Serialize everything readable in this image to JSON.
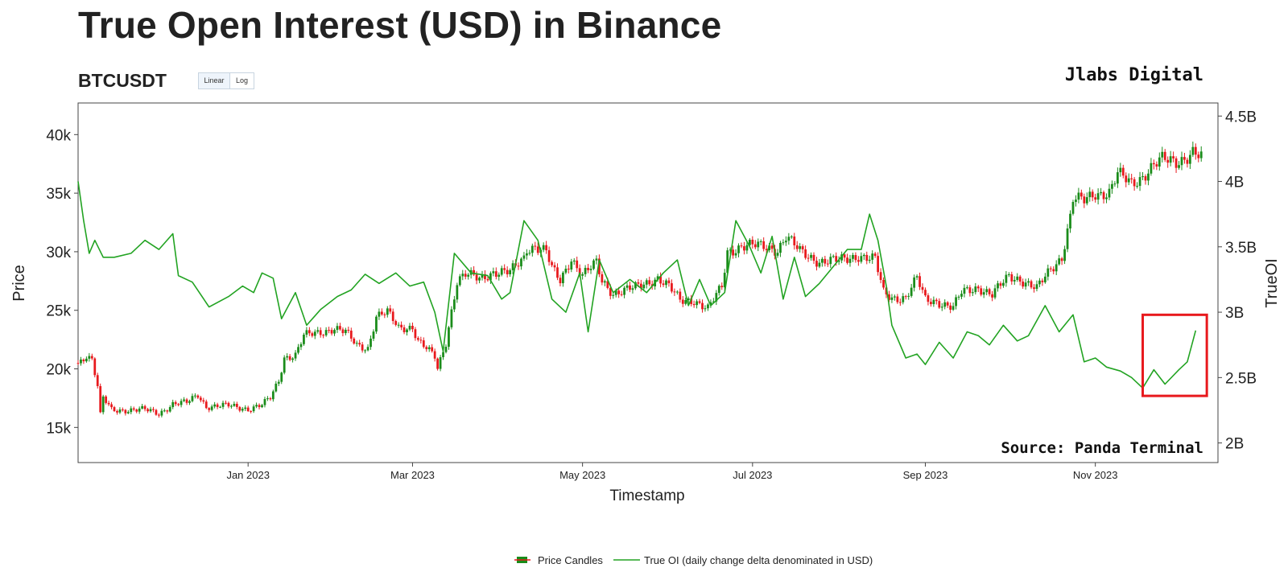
{
  "title": "True Open Interest (USD) in Binance",
  "symbol": "BTCUSDT",
  "scale_buttons": [
    {
      "label": "Linear",
      "active": true
    },
    {
      "label": "Log",
      "active": false
    }
  ],
  "watermark": "Jlabs Digital",
  "source": "Source: Panda Terminal",
  "colors": {
    "up": "#1a8c1a",
    "down": "#e8191d",
    "oi_line": "#22a322",
    "highlight_box": "#e8191d",
    "axis": "#444444"
  },
  "chart_data": {
    "type": "line",
    "xlabel": "Timestamp",
    "ylabel": "Price",
    "y2label": "TrueOI",
    "x_range": [
      "2022-11-01",
      "2023-12-15"
    ],
    "ylim": [
      12000,
      42700
    ],
    "y2lim": [
      1850000000,
      4600000000
    ],
    "x_ticks": [
      {
        "date": "2023-01-01",
        "label": "Jan 2023"
      },
      {
        "date": "2023-03-01",
        "label": "Mar 2023"
      },
      {
        "date": "2023-05-01",
        "label": "May 2023"
      },
      {
        "date": "2023-07-01",
        "label": "Jul 2023"
      },
      {
        "date": "2023-09-01",
        "label": "Sep 2023"
      },
      {
        "date": "2023-11-01",
        "label": "Nov 2023"
      }
    ],
    "y_ticks": [
      {
        "value": 15000,
        "label": "15k"
      },
      {
        "value": 20000,
        "label": "20k"
      },
      {
        "value": 25000,
        "label": "25k"
      },
      {
        "value": 30000,
        "label": "30k"
      },
      {
        "value": 35000,
        "label": "35k"
      },
      {
        "value": 40000,
        "label": "40k"
      }
    ],
    "y2_ticks": [
      {
        "value": 2000000000,
        "label": "2B"
      },
      {
        "value": 2500000000,
        "label": "2.5B"
      },
      {
        "value": 3000000000,
        "label": "3B"
      },
      {
        "value": 3500000000,
        "label": "3.5B"
      },
      {
        "value": 4000000000,
        "label": "4B"
      },
      {
        "value": 4500000000,
        "label": "4.5B"
      }
    ],
    "grid": false,
    "legend": {
      "placement": "bottom-center",
      "entries": [
        "Price Candles",
        "True OI (daily change delta denominated in USD)"
      ]
    },
    "annotation_box": {
      "x": [
        "2023-11-18",
        "2023-12-11"
      ],
      "y2": [
        2360000000,
        2980000000
      ]
    },
    "series": [
      {
        "name": "Price Candles",
        "type": "candlestick",
        "close": [
          [
            "2022-11-01",
            20500
          ],
          [
            "2022-11-04",
            21200
          ],
          [
            "2022-11-06",
            20800
          ],
          [
            "2022-11-08",
            18500
          ],
          [
            "2022-11-09",
            16000
          ],
          [
            "2022-11-10",
            17500
          ],
          [
            "2022-11-13",
            16500
          ],
          [
            "2022-11-20",
            16500
          ],
          [
            "2022-11-25",
            16500
          ],
          [
            "2022-11-30",
            16200
          ],
          [
            "2022-12-05",
            17000
          ],
          [
            "2022-12-10",
            17100
          ],
          [
            "2022-12-14",
            17800
          ],
          [
            "2022-12-17",
            16800
          ],
          [
            "2022-12-20",
            16800
          ],
          [
            "2022-12-25",
            16850
          ],
          [
            "2023-01-01",
            16600
          ],
          [
            "2023-01-06",
            16900
          ],
          [
            "2023-01-09",
            17500
          ],
          [
            "2023-01-12",
            19000
          ],
          [
            "2023-01-14",
            21000
          ],
          [
            "2023-01-18",
            21200
          ],
          [
            "2023-01-21",
            22800
          ],
          [
            "2023-01-25",
            23000
          ],
          [
            "2023-02-01",
            23500
          ],
          [
            "2023-02-05",
            23100
          ],
          [
            "2023-02-09",
            22000
          ],
          [
            "2023-02-13",
            21800
          ],
          [
            "2023-02-16",
            24500
          ],
          [
            "2023-02-20",
            24800
          ],
          [
            "2023-02-24",
            23500
          ],
          [
            "2023-03-01",
            23600
          ],
          [
            "2023-03-03",
            22400
          ],
          [
            "2023-03-09",
            21000
          ],
          [
            "2023-03-10",
            20000
          ],
          [
            "2023-03-13",
            22300
          ],
          [
            "2023-03-15",
            25000
          ],
          [
            "2023-03-17",
            27500
          ],
          [
            "2023-03-20",
            28000
          ],
          [
            "2023-03-25",
            27700
          ],
          [
            "2023-03-30",
            28300
          ],
          [
            "2023-04-05",
            28200
          ],
          [
            "2023-04-10",
            29500
          ],
          [
            "2023-04-11",
            30300
          ],
          [
            "2023-04-14",
            30500
          ],
          [
            "2023-04-18",
            30000
          ],
          [
            "2023-04-20",
            28500
          ],
          [
            "2023-04-23",
            27500
          ],
          [
            "2023-04-27",
            29500
          ],
          [
            "2023-05-01",
            28000
          ],
          [
            "2023-05-06",
            29000
          ],
          [
            "2023-05-08",
            27500
          ],
          [
            "2023-05-12",
            26500
          ],
          [
            "2023-05-20",
            26900
          ],
          [
            "2023-05-28",
            27800
          ],
          [
            "2023-06-01",
            27000
          ],
          [
            "2023-06-05",
            25800
          ],
          [
            "2023-06-10",
            25900
          ],
          [
            "2023-06-15",
            25100
          ],
          [
            "2023-06-20",
            27000
          ],
          [
            "2023-06-22",
            30000
          ],
          [
            "2023-06-27",
            30500
          ],
          [
            "2023-07-01",
            30500
          ],
          [
            "2023-07-06",
            30400
          ],
          [
            "2023-07-10",
            30200
          ],
          [
            "2023-07-13",
            31300
          ],
          [
            "2023-07-18",
            30000
          ],
          [
            "2023-07-25",
            29200
          ],
          [
            "2023-08-01",
            29200
          ],
          [
            "2023-08-08",
            29700
          ],
          [
            "2023-08-14",
            29300
          ],
          [
            "2023-08-17",
            26500
          ],
          [
            "2023-08-20",
            26100
          ],
          [
            "2023-08-25",
            26100
          ],
          [
            "2023-08-29",
            27700
          ],
          [
            "2023-09-01",
            25900
          ],
          [
            "2023-09-05",
            25800
          ],
          [
            "2023-09-11",
            25200
          ],
          [
            "2023-09-14",
            26500
          ],
          [
            "2023-09-20",
            27000
          ],
          [
            "2023-09-25",
            26300
          ],
          [
            "2023-10-01",
            27900
          ],
          [
            "2023-10-05",
            27700
          ],
          [
            "2023-10-11",
            26800
          ],
          [
            "2023-10-16",
            28500
          ],
          [
            "2023-10-20",
            29600
          ],
          [
            "2023-10-23",
            33000
          ],
          [
            "2023-10-24",
            34500
          ],
          [
            "2023-10-28",
            34300
          ],
          [
            "2023-11-01",
            35000
          ],
          [
            "2023-11-06",
            35100
          ],
          [
            "2023-11-09",
            36600
          ],
          [
            "2023-11-14",
            35800
          ],
          [
            "2023-11-17",
            36300
          ],
          [
            "2023-11-22",
            37400
          ],
          [
            "2023-11-25",
            37800
          ],
          [
            "2023-11-30",
            37700
          ],
          [
            "2023-12-04",
            38200
          ],
          [
            "2023-12-06",
            38500
          ],
          [
            "2023-12-09",
            38000
          ]
        ]
      },
      {
        "name": "True OI (daily change delta denominated in USD)",
        "type": "line",
        "points": [
          [
            "2022-11-01",
            4000000000
          ],
          [
            "2022-11-03",
            3700000000
          ],
          [
            "2022-11-05",
            3450000000
          ],
          [
            "2022-11-07",
            3550000000
          ],
          [
            "2022-11-10",
            3420000000
          ],
          [
            "2022-11-14",
            3420000000
          ],
          [
            "2022-11-20",
            3450000000
          ],
          [
            "2022-11-25",
            3550000000
          ],
          [
            "2022-11-30",
            3480000000
          ],
          [
            "2022-12-05",
            3600000000
          ],
          [
            "2022-12-07",
            3280000000
          ],
          [
            "2022-12-12",
            3230000000
          ],
          [
            "2022-12-18",
            3040000000
          ],
          [
            "2022-12-25",
            3120000000
          ],
          [
            "2022-12-30",
            3200000000
          ],
          [
            "2023-01-03",
            3150000000
          ],
          [
            "2023-01-06",
            3300000000
          ],
          [
            "2023-01-10",
            3260000000
          ],
          [
            "2023-01-13",
            2950000000
          ],
          [
            "2023-01-18",
            3150000000
          ],
          [
            "2023-01-22",
            2900000000
          ],
          [
            "2023-01-27",
            3020000000
          ],
          [
            "2023-02-02",
            3120000000
          ],
          [
            "2023-02-07",
            3170000000
          ],
          [
            "2023-02-12",
            3290000000
          ],
          [
            "2023-02-17",
            3220000000
          ],
          [
            "2023-02-23",
            3300000000
          ],
          [
            "2023-02-28",
            3200000000
          ],
          [
            "2023-03-05",
            3230000000
          ],
          [
            "2023-03-09",
            3000000000
          ],
          [
            "2023-03-12",
            2700000000
          ],
          [
            "2023-03-16",
            3450000000
          ],
          [
            "2023-03-22",
            3300000000
          ],
          [
            "2023-03-28",
            3280000000
          ],
          [
            "2023-04-02",
            3100000000
          ],
          [
            "2023-04-05",
            3150000000
          ],
          [
            "2023-04-10",
            3700000000
          ],
          [
            "2023-04-15",
            3550000000
          ],
          [
            "2023-04-20",
            3100000000
          ],
          [
            "2023-04-25",
            3000000000
          ],
          [
            "2023-04-30",
            3300000000
          ],
          [
            "2023-05-03",
            2850000000
          ],
          [
            "2023-05-07",
            3400000000
          ],
          [
            "2023-05-12",
            3150000000
          ],
          [
            "2023-05-18",
            3250000000
          ],
          [
            "2023-05-24",
            3150000000
          ],
          [
            "2023-05-30",
            3300000000
          ],
          [
            "2023-06-04",
            3400000000
          ],
          [
            "2023-06-08",
            3050000000
          ],
          [
            "2023-06-12",
            3250000000
          ],
          [
            "2023-06-16",
            3050000000
          ],
          [
            "2023-06-21",
            3150000000
          ],
          [
            "2023-06-25",
            3700000000
          ],
          [
            "2023-06-30",
            3500000000
          ],
          [
            "2023-07-04",
            3300000000
          ],
          [
            "2023-07-08",
            3580000000
          ],
          [
            "2023-07-12",
            3100000000
          ],
          [
            "2023-07-16",
            3420000000
          ],
          [
            "2023-07-20",
            3120000000
          ],
          [
            "2023-07-25",
            3220000000
          ],
          [
            "2023-07-30",
            3350000000
          ],
          [
            "2023-08-04",
            3480000000
          ],
          [
            "2023-08-09",
            3480000000
          ],
          [
            "2023-08-12",
            3750000000
          ],
          [
            "2023-08-15",
            3550000000
          ],
          [
            "2023-08-18",
            3200000000
          ],
          [
            "2023-08-20",
            2900000000
          ],
          [
            "2023-08-25",
            2650000000
          ],
          [
            "2023-08-29",
            2680000000
          ],
          [
            "2023-09-01",
            2600000000
          ],
          [
            "2023-09-06",
            2770000000
          ],
          [
            "2023-09-11",
            2650000000
          ],
          [
            "2023-09-16",
            2850000000
          ],
          [
            "2023-09-20",
            2820000000
          ],
          [
            "2023-09-24",
            2750000000
          ],
          [
            "2023-09-29",
            2900000000
          ],
          [
            "2023-10-04",
            2780000000
          ],
          [
            "2023-10-08",
            2820000000
          ],
          [
            "2023-10-14",
            3050000000
          ],
          [
            "2023-10-19",
            2850000000
          ],
          [
            "2023-10-24",
            2980000000
          ],
          [
            "2023-10-28",
            2620000000
          ],
          [
            "2023-11-01",
            2650000000
          ],
          [
            "2023-11-05",
            2580000000
          ],
          [
            "2023-11-10",
            2550000000
          ],
          [
            "2023-11-14",
            2500000000
          ],
          [
            "2023-11-18",
            2420000000
          ],
          [
            "2023-11-22",
            2560000000
          ],
          [
            "2023-11-26",
            2450000000
          ],
          [
            "2023-12-01",
            2560000000
          ],
          [
            "2023-12-04",
            2620000000
          ],
          [
            "2023-12-07",
            2860000000
          ]
        ]
      }
    ]
  }
}
